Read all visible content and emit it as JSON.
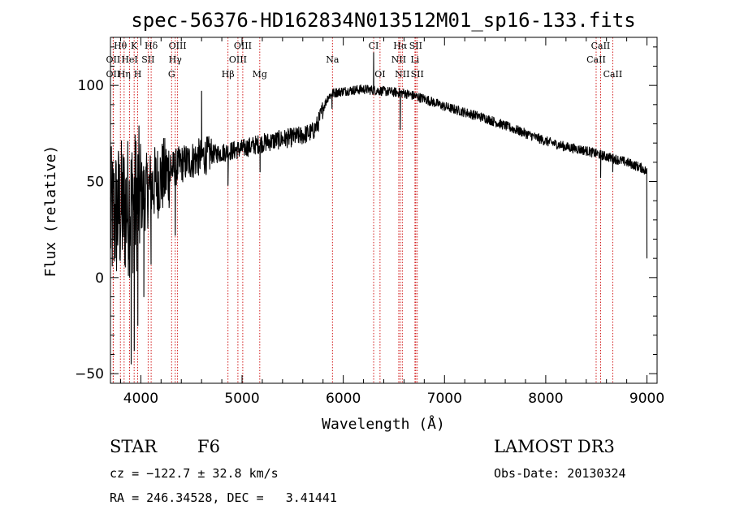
{
  "chart_data": {
    "type": "line",
    "title": "spec-56376-HD162834N013512M01_sp16-133.fits",
    "xlabel": "Wavelength (Å)",
    "ylabel": "Flux (relative)",
    "xlim": [
      3700,
      9100
    ],
    "ylim": [
      -55,
      125
    ],
    "xticks": [
      4000,
      5000,
      6000,
      7000,
      8000,
      9000
    ],
    "xtick_labels": [
      "4000",
      "5000",
      "6000",
      "7000",
      "8000",
      "9000"
    ],
    "yticks": [
      -50,
      0,
      50,
      100
    ],
    "ytick_labels": [
      "−50",
      "0",
      "50",
      "100"
    ],
    "continuum": [
      [
        3700,
        30
      ],
      [
        3800,
        35
      ],
      [
        3900,
        38
      ],
      [
        4000,
        42
      ],
      [
        4100,
        47
      ],
      [
        4200,
        52
      ],
      [
        4300,
        56
      ],
      [
        4400,
        59
      ],
      [
        4500,
        61
      ],
      [
        4600,
        63
      ],
      [
        4800,
        65
      ],
      [
        5000,
        67
      ],
      [
        5200,
        70
      ],
      [
        5400,
        72
      ],
      [
        5600,
        74
      ],
      [
        5700,
        76
      ],
      [
        5750,
        80
      ],
      [
        5800,
        88
      ],
      [
        5850,
        94
      ],
      [
        5900,
        96
      ],
      [
        6000,
        97
      ],
      [
        6200,
        98
      ],
      [
        6400,
        97
      ],
      [
        6600,
        96
      ],
      [
        6800,
        93
      ],
      [
        7000,
        89
      ],
      [
        7200,
        86
      ],
      [
        7400,
        83
      ],
      [
        7600,
        79
      ],
      [
        7800,
        75
      ],
      [
        8000,
        71
      ],
      [
        8200,
        68
      ],
      [
        8400,
        66
      ],
      [
        8600,
        63
      ],
      [
        8800,
        60
      ],
      [
        8950,
        57
      ],
      [
        9000,
        55
      ]
    ],
    "spikes": [
      [
        3905,
        -45
      ],
      [
        3935,
        -38
      ],
      [
        3970,
        -25
      ],
      [
        4030,
        -10
      ],
      [
        4101,
        7
      ],
      [
        4340,
        22
      ],
      [
        4600,
        97
      ],
      [
        4861,
        48
      ],
      [
        5178,
        55
      ],
      [
        5889,
        88
      ],
      [
        6300,
        117
      ],
      [
        6563,
        77
      ],
      [
        8542,
        52
      ],
      [
        8662,
        55
      ],
      [
        9000,
        10
      ]
    ],
    "lines": [
      {
        "name": "Hθ",
        "x": 3798,
        "row": 0
      },
      {
        "name": "OII",
        "x": 3727,
        "row": 1
      },
      {
        "name": "OII",
        "x": 3727,
        "row": 2
      },
      {
        "name": "Hη",
        "x": 3835,
        "row": 2
      },
      {
        "name": "K",
        "x": 3934,
        "row": 0
      },
      {
        "name": "HeI",
        "x": 3889,
        "row": 1
      },
      {
        "name": "H",
        "x": 3969,
        "row": 2
      },
      {
        "name": "Hδ",
        "x": 4102,
        "row": 0
      },
      {
        "name": "SII",
        "x": 4072,
        "row": 1
      },
      {
        "name": "OIII",
        "x": 4363,
        "row": 0
      },
      {
        "name": "Hγ",
        "x": 4340,
        "row": 1
      },
      {
        "name": "G",
        "x": 4304,
        "row": 2
      },
      {
        "name": "OIII",
        "x": 5007,
        "row": 0
      },
      {
        "name": "OIII",
        "x": 4959,
        "row": 1
      },
      {
        "name": "Hβ",
        "x": 4861,
        "row": 2
      },
      {
        "name": "Mg",
        "x": 5175,
        "row": 2
      },
      {
        "name": "Na",
        "x": 5893,
        "row": 1
      },
      {
        "name": "CI",
        "x": 6300,
        "row": 0
      },
      {
        "name": "OI",
        "x": 6363,
        "row": 2
      },
      {
        "name": "Hα",
        "x": 6563,
        "row": 0
      },
      {
        "name": "NII",
        "x": 6548,
        "row": 1
      },
      {
        "name": "NII",
        "x": 6583,
        "row": 2
      },
      {
        "name": "SII",
        "x": 6716,
        "row": 0
      },
      {
        "name": "Li",
        "x": 6708,
        "row": 1
      },
      {
        "name": "SII",
        "x": 6731,
        "row": 2
      },
      {
        "name": "CaII",
        "x": 8542,
        "row": 0
      },
      {
        "name": "CaII",
        "x": 8498,
        "row": 1
      },
      {
        "name": "CaII",
        "x": 8662,
        "row": 2
      }
    ]
  },
  "info": {
    "object_type": "STAR",
    "subclass": "F6",
    "survey": "LAMOST DR3",
    "cz": "cz = −122.7 ± 32.8 km/s",
    "obs_date": "Obs-Date: 20130324",
    "coords": "RA = 246.34528, DEC =   3.41441"
  }
}
